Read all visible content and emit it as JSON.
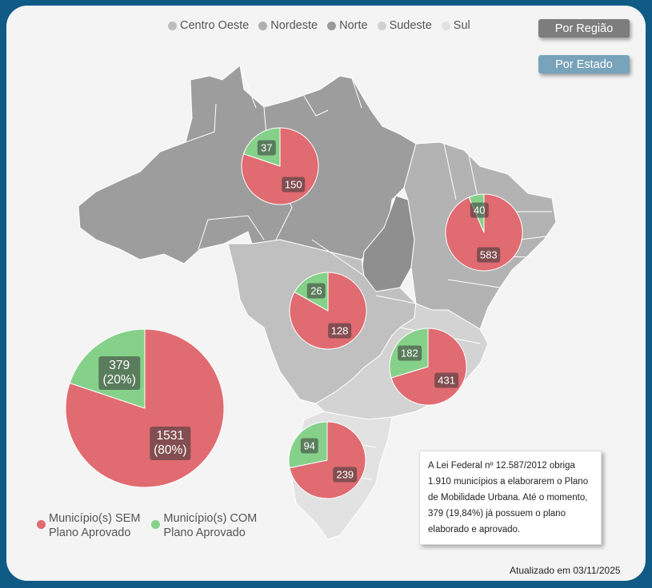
{
  "buttons": {
    "por_regiao": "Por Região",
    "por_estado": "Por Estado"
  },
  "region_legend": [
    {
      "label": "Centro Oeste",
      "color": "#bdbdbd"
    },
    {
      "label": "Nordeste",
      "color": "#b0b0b0"
    },
    {
      "label": "Norte",
      "color": "#9a9a9a"
    },
    {
      "label": "Sudeste",
      "color": "#d0d0d0"
    },
    {
      "label": "Sul",
      "color": "#e0e0e0"
    }
  ],
  "series_legend": [
    {
      "line1": "Município(s) SEM",
      "line2": "Plano Aprovado",
      "color": "#e06b71"
    },
    {
      "line1": "Município(s) COM",
      "line2": "Plano Aprovado",
      "color": "#86d18a"
    }
  ],
  "chart_data": {
    "type": "pie",
    "series": [
      {
        "name": "Município(s) SEM Plano Aprovado",
        "color": "#e06b71"
      },
      {
        "name": "Município(s) COM Plano Aprovado",
        "color": "#86d18a"
      }
    ],
    "regions": [
      {
        "region": "Norte",
        "com": 37,
        "sem": 150
      },
      {
        "region": "Nordeste",
        "com": 40,
        "sem": 583
      },
      {
        "region": "Centro Oeste",
        "com": 26,
        "sem": 128
      },
      {
        "region": "Sudeste",
        "com": 182,
        "sem": 431
      },
      {
        "region": "Sul",
        "com": 94,
        "sem": 239
      }
    ],
    "total": {
      "com": 379,
      "sem": 1531,
      "com_pct": "(20%)",
      "sem_pct": "(80%)"
    }
  },
  "info_text": "A Lei Federal nº 12.587/2012 obriga 1.910 municípios a elaborarem o Plano de Mobilidade Urbana. Até o momento, 379 (19,84%) já possuem o plano elaborado e aprovado.",
  "updated": "Atualizado em 03/11/2025"
}
